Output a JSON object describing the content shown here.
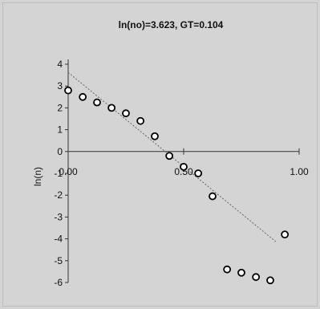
{
  "chart_data": {
    "type": "scatter",
    "title": "ln(no)=3.623, GT=0.104",
    "xlabel": "",
    "ylabel": "ln(n)",
    "xlim": [
      0.0,
      1.0
    ],
    "ylim": [
      -6,
      4
    ],
    "x_tick_labels": [
      "0.00",
      "0.50",
      "1.00"
    ],
    "y_tick_labels": [
      "4",
      "3",
      "2",
      "1",
      "0",
      "-1",
      "-2",
      "-3",
      "-4",
      "-5",
      "-6"
    ],
    "x_ticks": [
      0.0,
      0.5,
      1.0
    ],
    "y_ticks": [
      4,
      3,
      2,
      1,
      0,
      -1,
      -2,
      -3,
      -4,
      -5,
      -6
    ],
    "grid": false,
    "series": [
      {
        "x": [
          0.0,
          0.063,
          0.125,
          0.188,
          0.25,
          0.313,
          0.375,
          0.438,
          0.5,
          0.563,
          0.625,
          0.688,
          0.75,
          0.813,
          0.875,
          0.938
        ],
        "y": [
          2.8,
          2.5,
          2.25,
          2.0,
          1.75,
          1.4,
          0.7,
          -0.2,
          -0.7,
          -1.0,
          -2.05,
          -5.4,
          -5.55,
          -5.75,
          -5.9,
          -3.8
        ]
      }
    ],
    "trendline": {
      "x": [
        0.0,
        1.0
      ],
      "y": [
        3.623,
        -5.0
      ]
    },
    "colors": {
      "background": "#d4d4d4",
      "axes": "#333333",
      "marker_fill": "#ffffff",
      "marker_edge": "#000000",
      "trendline": "#666666"
    }
  }
}
